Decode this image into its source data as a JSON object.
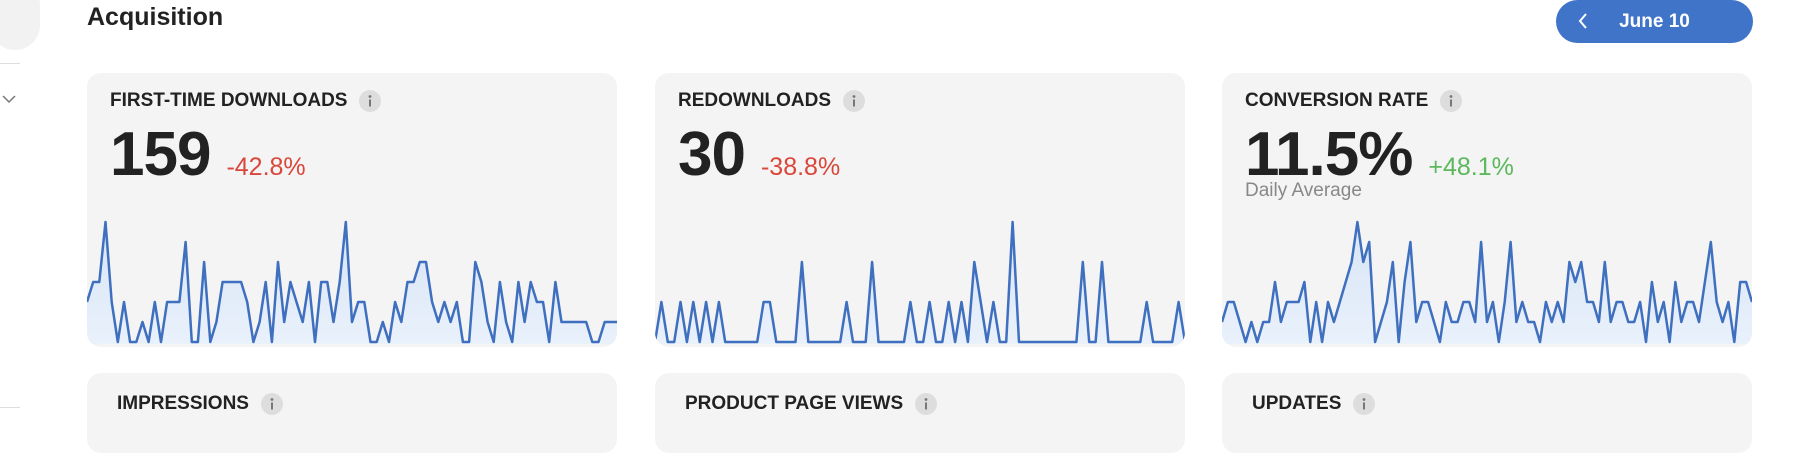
{
  "header": {
    "title": "Acquisition",
    "date_button": "June 10"
  },
  "cards": [
    {
      "title": "FIRST-TIME DOWNLOADS",
      "value": "159",
      "change": "-42.8%",
      "change_color": "#d9473b",
      "spark": [
        2,
        3,
        3,
        6,
        2,
        0,
        2,
        0,
        0,
        1,
        0,
        2,
        0,
        2,
        2,
        2,
        5,
        0,
        0,
        4,
        0,
        1,
        3,
        3,
        3,
        3,
        2,
        0,
        1,
        3,
        0,
        4,
        1,
        3,
        2,
        1,
        3,
        0,
        3,
        3,
        1,
        3,
        6,
        1,
        2,
        2,
        0,
        0,
        1,
        0,
        2,
        1,
        3,
        3,
        4,
        4,
        2,
        1,
        2,
        1,
        2,
        0,
        0,
        4,
        3,
        1,
        0,
        3,
        1,
        0,
        3,
        1,
        3,
        2,
        2,
        0,
        3,
        1,
        1,
        1,
        1,
        1,
        0,
        0,
        1,
        1,
        1
      ]
    },
    {
      "title": "REDOWNLOADS",
      "value": "30",
      "change": "-38.8%",
      "change_color": "#d9473b",
      "spark": [
        0,
        2,
        0,
        0,
        2,
        0,
        2,
        0,
        2,
        0,
        2,
        0,
        0,
        0,
        0,
        0,
        0,
        2,
        2,
        0,
        0,
        0,
        0,
        4,
        0,
        0,
        0,
        0,
        0,
        0,
        2,
        0,
        0,
        0,
        4,
        0,
        0,
        0,
        0,
        0,
        2,
        0,
        0,
        2,
        0,
        0,
        2,
        0,
        2,
        0,
        4,
        2,
        0,
        2,
        0,
        0,
        6,
        0,
        0,
        0,
        0,
        0,
        0,
        0,
        0,
        0,
        0,
        4,
        0,
        0,
        4,
        0,
        0,
        0,
        0,
        0,
        0,
        2,
        0,
        0,
        0,
        0,
        2,
        0
      ]
    },
    {
      "title": "CONVERSION RATE",
      "value": "11.5%",
      "change": "+48.1%",
      "change_color": "#5cb85c",
      "subtitle": "Daily Average",
      "spark": [
        1,
        2,
        2,
        1,
        0,
        1,
        0,
        1,
        1,
        3,
        1,
        2,
        2,
        2,
        3,
        0,
        2,
        0,
        2,
        1,
        2,
        3,
        4,
        6,
        4,
        5,
        0,
        1,
        2,
        4,
        0,
        3,
        5,
        1,
        2,
        2,
        1,
        0,
        2,
        1,
        1,
        2,
        2,
        1,
        5,
        1,
        2,
        0,
        2,
        5,
        1,
        2,
        1,
        1,
        0,
        2,
        1,
        2,
        1,
        4,
        3,
        4,
        2,
        2,
        1,
        4,
        1,
        2,
        2,
        1,
        1,
        2,
        0,
        3,
        1,
        2,
        0,
        3,
        1,
        2,
        2,
        1,
        3,
        5,
        2,
        1,
        2,
        0,
        3,
        3,
        2
      ]
    }
  ],
  "bottom_cards": [
    "IMPRESSIONS",
    "PRODUCT PAGE VIEWS",
    "UPDATES"
  ]
}
